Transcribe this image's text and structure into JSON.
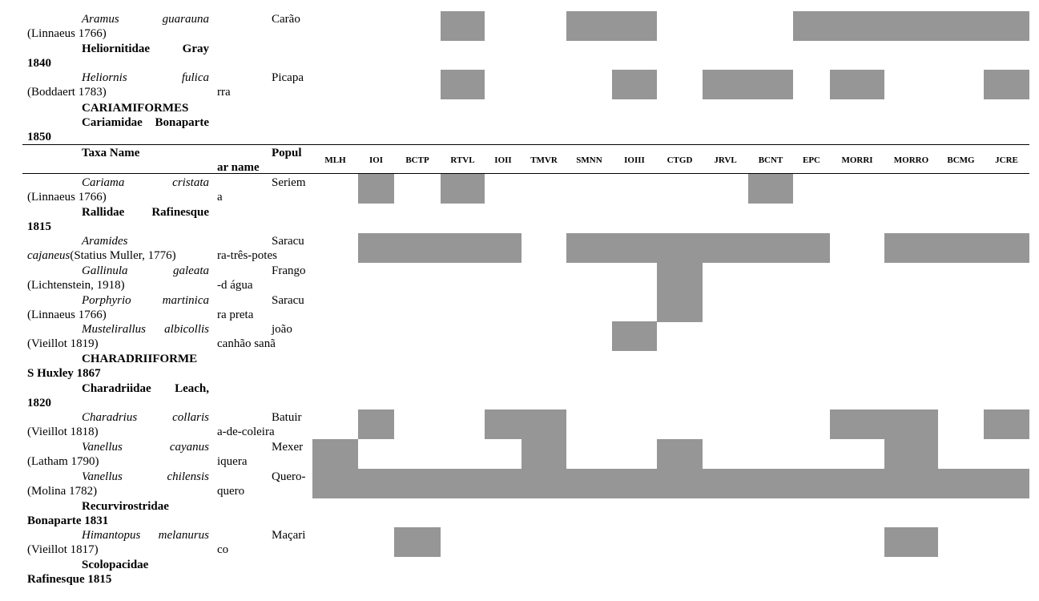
{
  "columns": [
    "MLH",
    "IOI",
    "BCTP",
    "RTVL",
    "IOII",
    "TMVR",
    "SMNN",
    "IOIII",
    "CTGD",
    "JRVL",
    "BCNT",
    "EPC",
    "MORRI",
    "MORRO",
    "BCMG",
    "JCRE"
  ],
  "header": {
    "taxa": "Taxa Name",
    "popular_1": "Popul",
    "popular_2": "ar name"
  },
  "rows": [
    {
      "type": "species",
      "sp": "Aramus guarauna",
      "author": "(Linnaeus 1766)",
      "pop1": "Carão",
      "pop2": "",
      "presence": [
        0,
        0,
        0,
        1,
        0,
        0,
        1,
        1,
        0,
        0,
        0,
        1,
        1,
        1,
        1,
        1
      ]
    },
    {
      "type": "family",
      "name1": "Heliornitidae Gray",
      "name2": "1840"
    },
    {
      "type": "species",
      "sp": "Heliornis fulica",
      "author": "(Boddaert 1783)",
      "pop1": "Picapa",
      "pop2": "rra",
      "presence": [
        0,
        0,
        0,
        1,
        0,
        0,
        0,
        1,
        0,
        1,
        1,
        0,
        1,
        0,
        0,
        1
      ]
    },
    {
      "type": "order",
      "name1": "CARIAMIFORMES"
    },
    {
      "type": "family",
      "name1": "Cariamidae Bonaparte",
      "name2": "1850"
    },
    {
      "type": "header"
    },
    {
      "type": "species",
      "sp": "Cariama cristata",
      "author": "(Linnaeus 1766)",
      "pop1": "Seriem",
      "pop2": "a",
      "presence": [
        0,
        1,
        0,
        1,
        0,
        0,
        0,
        0,
        0,
        0,
        1,
        0,
        0,
        0,
        0,
        0
      ]
    },
    {
      "type": "family",
      "name1": "Rallidae Rafinesque",
      "name2": "1815"
    },
    {
      "type": "species",
      "sp": "Aramides",
      "sp_italic_inline": "cajaneus",
      "author": "(Statius Muller, 1776)",
      "pop1": "Saracu",
      "pop2": "ra-três-potes",
      "presence": [
        0,
        1,
        1,
        1,
        1,
        0,
        1,
        1,
        1,
        1,
        1,
        1,
        0,
        1,
        1,
        1
      ]
    },
    {
      "type": "species",
      "sp": "Gallinula galeata",
      "author": "(Lichtenstein, 1918)",
      "pop1": "Frango",
      "pop2": "-d água",
      "presence": [
        0,
        0,
        0,
        0,
        0,
        0,
        0,
        0,
        1,
        0,
        0,
        0,
        0,
        0,
        0,
        0
      ]
    },
    {
      "type": "species",
      "sp": "Porphyrio martinica",
      "author": "(Linnaeus 1766)",
      "pop1": "Saracu",
      "pop2": "ra preta",
      "presence": [
        0,
        0,
        0,
        0,
        0,
        0,
        0,
        0,
        1,
        0,
        0,
        0,
        0,
        0,
        0,
        0
      ]
    },
    {
      "type": "species",
      "sp": "Mustelirallus albicollis",
      "author": "(Vieillot 1819)",
      "pop1": "joão",
      "pop2": "canhão sanã",
      "presence": [
        0,
        0,
        0,
        0,
        0,
        0,
        0,
        1,
        0,
        0,
        0,
        0,
        0,
        0,
        0,
        0
      ]
    },
    {
      "type": "order",
      "name1": "CHARADRIIFORME",
      "name2": "S Huxley 1867"
    },
    {
      "type": "family",
      "name1": "Charadriidae Leach,",
      "name2": "1820"
    },
    {
      "type": "species",
      "sp": "Charadrius collaris",
      "author": "(Vieillot 1818)",
      "pop1": "Batuir",
      "pop2": "a-de-coleira",
      "presence": [
        0,
        1,
        0,
        0,
        1,
        1,
        0,
        0,
        0,
        0,
        0,
        0,
        1,
        1,
        0,
        1
      ]
    },
    {
      "type": "species",
      "sp": "Vanellus cayanus",
      "author": "(Latham 1790)",
      "pop1": "Mexer",
      "pop2": "iquera",
      "presence": [
        1,
        0,
        0,
        0,
        0,
        1,
        0,
        0,
        1,
        0,
        0,
        0,
        0,
        1,
        0,
        0
      ]
    },
    {
      "type": "species",
      "sp": "Vanellus chilensis",
      "author": "(Molina 1782)",
      "pop1": "Quero-",
      "pop2": "quero",
      "presence": [
        1,
        1,
        1,
        1,
        1,
        1,
        1,
        1,
        1,
        1,
        1,
        1,
        1,
        1,
        1,
        1
      ]
    },
    {
      "type": "family",
      "name1": "Recurvirostridae",
      "name2": "Bonaparte 1831"
    },
    {
      "type": "species",
      "sp": "Himantopus melanurus",
      "author": "(Vieillot 1817)",
      "pop1": "Maçari",
      "pop2": "co",
      "presence": [
        0,
        0,
        1,
        0,
        0,
        0,
        0,
        0,
        0,
        0,
        0,
        0,
        0,
        1,
        0,
        0
      ]
    },
    {
      "type": "family",
      "name1": "Scolopacidae",
      "name2": "Rafinesque 1815"
    }
  ]
}
